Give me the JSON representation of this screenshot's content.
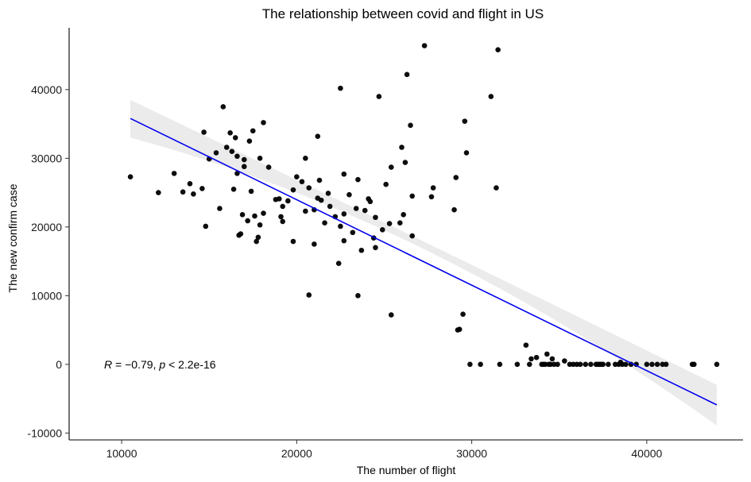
{
  "chart_data": {
    "type": "scatter",
    "title": "The relationship between covid and flight in US",
    "xlabel": "The number of flight",
    "ylabel": "The new confirm case",
    "xlim": [
      7000,
      45500
    ],
    "ylim": [
      -11000,
      49000
    ],
    "x_ticks": [
      10000,
      20000,
      30000,
      40000
    ],
    "x_tick_labels": [
      "10000",
      "20000",
      "30000",
      "40000"
    ],
    "y_ticks": [
      -10000,
      0,
      10000,
      20000,
      30000,
      40000
    ],
    "y_tick_labels": [
      "-10000",
      "0",
      "10000",
      "20000",
      "30000",
      "40000"
    ],
    "grid": false,
    "annotation": {
      "R_label": "R",
      "R_text": " = −0.79, ",
      "p_label": "p",
      "p_text": " < 2.2e-16",
      "x": 9000,
      "y": 0
    },
    "regression": {
      "x": [
        10500,
        44000
      ],
      "y": [
        35800,
        -5900
      ],
      "ci_lower_y": [
        33000,
        -8900
      ],
      "ci_mid_lower_y": [
        16800,
        10300
      ],
      "ci_mid_upper_y": [
        17900,
        11600
      ],
      "ci_upper_y": [
        38500,
        -3000
      ],
      "line_color": "#0000ee",
      "band_color": "#ebebeb"
    },
    "point_color": "#000000",
    "points": [
      [
        10500,
        27300
      ],
      [
        12100,
        25000
      ],
      [
        13000,
        27800
      ],
      [
        13500,
        25100
      ],
      [
        13900,
        26300
      ],
      [
        14100,
        24800
      ],
      [
        14600,
        25600
      ],
      [
        14700,
        33800
      ],
      [
        14800,
        20100
      ],
      [
        15000,
        29900
      ],
      [
        15400,
        30800
      ],
      [
        15600,
        22700
      ],
      [
        15800,
        37500
      ],
      [
        16000,
        31600
      ],
      [
        16200,
        33700
      ],
      [
        16300,
        31000
      ],
      [
        16400,
        25500
      ],
      [
        16500,
        33000
      ],
      [
        16600,
        27800
      ],
      [
        16600,
        30300
      ],
      [
        16700,
        18800
      ],
      [
        16800,
        19000
      ],
      [
        16900,
        21800
      ],
      [
        17000,
        28800
      ],
      [
        17000,
        29800
      ],
      [
        17200,
        20900
      ],
      [
        17300,
        32500
      ],
      [
        17400,
        25200
      ],
      [
        17500,
        34000
      ],
      [
        17600,
        21600
      ],
      [
        17700,
        17900
      ],
      [
        17800,
        18500
      ],
      [
        17900,
        20300
      ],
      [
        17900,
        30000
      ],
      [
        18100,
        35200
      ],
      [
        18100,
        22000
      ],
      [
        18400,
        28700
      ],
      [
        18800,
        24000
      ],
      [
        19000,
        24100
      ],
      [
        19100,
        21500
      ],
      [
        19200,
        20800
      ],
      [
        19200,
        23000
      ],
      [
        19500,
        23800
      ],
      [
        19800,
        25400
      ],
      [
        19800,
        17900
      ],
      [
        20000,
        27300
      ],
      [
        20300,
        26600
      ],
      [
        20500,
        30000
      ],
      [
        20500,
        22300
      ],
      [
        20700,
        25700
      ],
      [
        20700,
        10100
      ],
      [
        21000,
        22500
      ],
      [
        21000,
        17500
      ],
      [
        21200,
        33200
      ],
      [
        21200,
        24200
      ],
      [
        21300,
        26800
      ],
      [
        21400,
        23900
      ],
      [
        21600,
        20600
      ],
      [
        21800,
        24900
      ],
      [
        21900,
        23000
      ],
      [
        22200,
        21500
      ],
      [
        22400,
        14700
      ],
      [
        22500,
        20100
      ],
      [
        22500,
        40200
      ],
      [
        22700,
        27700
      ],
      [
        22700,
        18000
      ],
      [
        22700,
        21900
      ],
      [
        23000,
        24700
      ],
      [
        23200,
        19200
      ],
      [
        23400,
        22700
      ],
      [
        23500,
        26900
      ],
      [
        23500,
        10000
      ],
      [
        23700,
        16600
      ],
      [
        23900,
        22400
      ],
      [
        24100,
        24100
      ],
      [
        24200,
        23700
      ],
      [
        24400,
        18400
      ],
      [
        24500,
        17000
      ],
      [
        24500,
        21400
      ],
      [
        24700,
        39000
      ],
      [
        24900,
        19600
      ],
      [
        25100,
        26200
      ],
      [
        25300,
        20500
      ],
      [
        25400,
        7200
      ],
      [
        25400,
        28700
      ],
      [
        25900,
        20600
      ],
      [
        26000,
        31600
      ],
      [
        26100,
        21800
      ],
      [
        26200,
        29400
      ],
      [
        26300,
        42200
      ],
      [
        26500,
        34800
      ],
      [
        26600,
        24500
      ],
      [
        26600,
        18700
      ],
      [
        27300,
        46400
      ],
      [
        27700,
        24400
      ],
      [
        27800,
        25700
      ],
      [
        29000,
        22500
      ],
      [
        29100,
        27200
      ],
      [
        29200,
        5000
      ],
      [
        29300,
        5100
      ],
      [
        29500,
        7300
      ],
      [
        29600,
        35400
      ],
      [
        29700,
        30800
      ],
      [
        29900,
        0
      ],
      [
        30500,
        0
      ],
      [
        31100,
        39000
      ],
      [
        31400,
        25700
      ],
      [
        31500,
        45800
      ],
      [
        31600,
        0
      ],
      [
        32600,
        0
      ],
      [
        33100,
        2800
      ],
      [
        33300,
        0
      ],
      [
        33400,
        800
      ],
      [
        33700,
        1000
      ],
      [
        34000,
        0
      ],
      [
        34100,
        0
      ],
      [
        34200,
        0
      ],
      [
        34300,
        1500
      ],
      [
        34400,
        0
      ],
      [
        34500,
        0
      ],
      [
        34600,
        800
      ],
      [
        34700,
        0
      ],
      [
        34900,
        0
      ],
      [
        35300,
        500
      ],
      [
        35600,
        0
      ],
      [
        35800,
        0
      ],
      [
        36000,
        0
      ],
      [
        36200,
        0
      ],
      [
        36500,
        0
      ],
      [
        36800,
        0
      ],
      [
        37100,
        0
      ],
      [
        37200,
        0
      ],
      [
        37300,
        0
      ],
      [
        37400,
        0
      ],
      [
        37500,
        0
      ],
      [
        37800,
        0
      ],
      [
        38200,
        0
      ],
      [
        38400,
        0
      ],
      [
        38500,
        300
      ],
      [
        38600,
        0
      ],
      [
        38800,
        0
      ],
      [
        39100,
        0
      ],
      [
        39400,
        0
      ],
      [
        40000,
        0
      ],
      [
        40300,
        0
      ],
      [
        40600,
        0
      ],
      [
        40900,
        0
      ],
      [
        41100,
        0
      ],
      [
        42600,
        0
      ],
      [
        42700,
        0
      ],
      [
        44000,
        0
      ]
    ]
  }
}
